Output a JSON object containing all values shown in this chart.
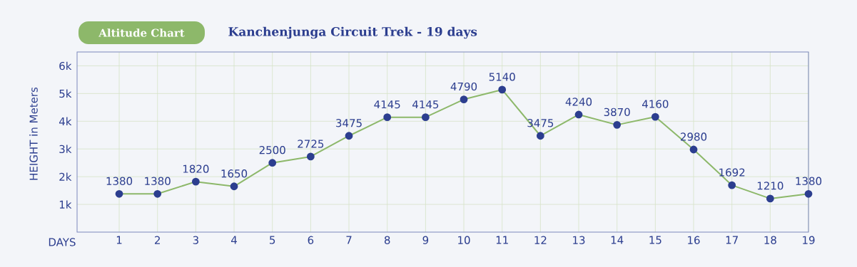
{
  "chart_data": {
    "type": "line",
    "title": "Kanchenjunga Circuit Trek - 19 days",
    "subtitle": "Altitude Chart",
    "xlabel": "DAYS",
    "ylabel": "HEIGHT in Meters",
    "x": [
      1,
      2,
      3,
      4,
      5,
      6,
      7,
      8,
      9,
      10,
      11,
      12,
      13,
      14,
      15,
      16,
      17,
      18,
      19
    ],
    "series": [
      {
        "color": "#8db86a",
        "values": [
          1380,
          1380,
          1820,
          1650,
          2500,
          2725,
          3475,
          4145,
          4145,
          4790,
          5140,
          3475,
          4240,
          3870,
          4160,
          2980,
          1692,
          1210,
          1380
        ]
      }
    ],
    "xlim": [
      -0.1,
      19
    ],
    "xticks": [
      1,
      2,
      3,
      4,
      5,
      6,
      7,
      8,
      9,
      10,
      11,
      12,
      13,
      14,
      15,
      16,
      17,
      18,
      19
    ],
    "ylim": [
      0,
      6500
    ],
    "yticks": [
      {
        "value": 1000,
        "label": "1k"
      },
      {
        "value": 2000,
        "label": "2k"
      },
      {
        "value": 3000,
        "label": "3k"
      },
      {
        "value": 4000,
        "label": "4k"
      },
      {
        "value": 5000,
        "label": "5k"
      },
      {
        "value": 6000,
        "label": "6k"
      }
    ],
    "grid": true,
    "marker": "circle",
    "line_style": "solid",
    "data_labels": true
  }
}
